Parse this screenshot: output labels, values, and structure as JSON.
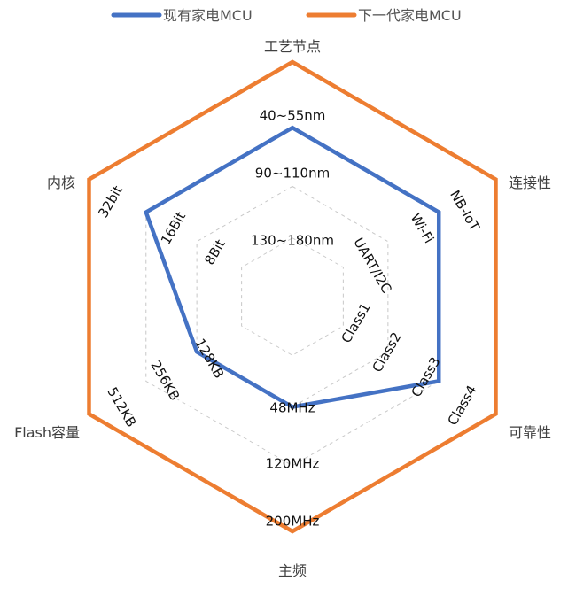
{
  "chart_data": {
    "type": "radar",
    "title": "",
    "legend": {
      "placement": "top-center"
    },
    "axes": [
      {
        "name": "工艺节点",
        "levels": [
          "130~180nm",
          "90~110nm",
          "40~55nm"
        ]
      },
      {
        "name": "连接性",
        "levels": [
          "UART/I2C",
          "Wi-Fi",
          "NB-IoT"
        ]
      },
      {
        "name": "可靠性",
        "levels": [
          "Class1",
          "Class2",
          "Class3",
          "Class4"
        ]
      },
      {
        "name": "主频",
        "levels": [
          "48MHz",
          "120MHz",
          "200MHz"
        ]
      },
      {
        "name": "Flash容量",
        "levels": [
          "128KB",
          "256KB",
          "512KB"
        ]
      },
      {
        "name": "内核",
        "levels": [
          "8Bit",
          "16Bit",
          "32bit"
        ]
      }
    ],
    "grid": {
      "rings": 4,
      "style": "dashed"
    },
    "series": [
      {
        "name": "现有家电MCU",
        "color": "#4472C4",
        "values": [
          "90~110nm",
          "Wi-Fi",
          "Class3",
          "48MHz",
          "128KB",
          "16Bit"
        ]
      },
      {
        "name": "下一代家电MCU",
        "color": "#ED7D31",
        "values": [
          "40~55nm",
          "NB-IoT",
          "Class4",
          "200MHz",
          "512KB",
          "32bit"
        ]
      }
    ]
  }
}
